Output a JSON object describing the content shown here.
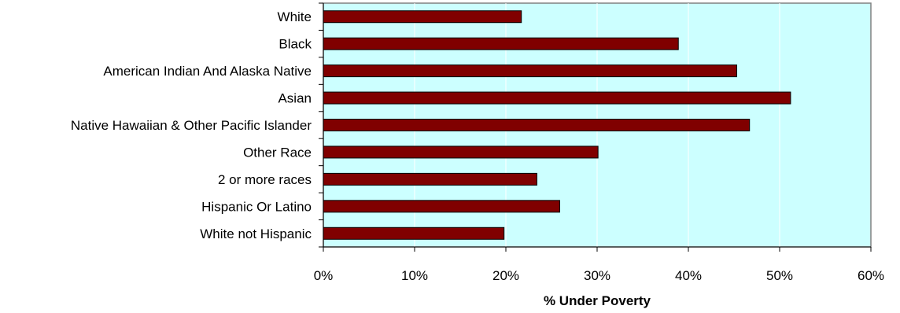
{
  "chart_data": {
    "type": "bar",
    "orientation": "horizontal",
    "categories": [
      "White",
      "Black",
      "American Indian And Alaska Native",
      "Asian",
      "Native Hawaiian & Other Pacific Islander",
      "Other Race",
      "2 or more races",
      "Hispanic Or Latino",
      "White not Hispanic"
    ],
    "values": [
      21.7,
      38.9,
      45.3,
      51.2,
      46.7,
      30.1,
      23.4,
      25.9,
      19.8
    ],
    "xlabel": "% Under Poverty",
    "ylabel": "",
    "xlim": [
      0,
      60
    ],
    "x_ticks": [
      "0%",
      "10%",
      "20%",
      "30%",
      "40%",
      "50%",
      "60%"
    ],
    "grid": "vertical",
    "legend": "none",
    "colors": {
      "bar": "#800000",
      "plot_background": "#ccffff",
      "gridline": "#ffffff",
      "frame": "#808080"
    }
  }
}
